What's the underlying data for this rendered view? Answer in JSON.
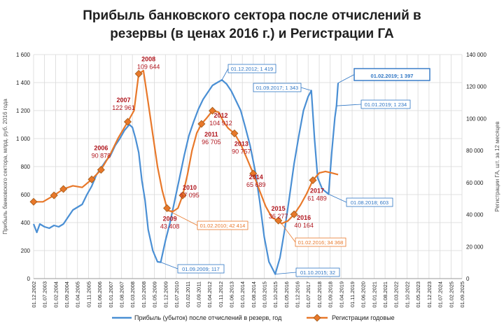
{
  "chart_data": {
    "type": "line",
    "title_line1": "Прибыль банковского сектора после отчислений в",
    "title_line2": "резервы (в ценах 2016 г.) и Регистрации ГА",
    "ylabel_left": "Прибыль банковского сектора, млрд. руб. 2016 года",
    "ylabel_right": "Регистрации ГА, шт. за 12 месяцев",
    "ylim_left": [
      0,
      1600
    ],
    "ylim_right": [
      0,
      140000
    ],
    "yticks_left": [
      "0",
      "200",
      "400",
      "600",
      "800",
      "1 000",
      "1 200",
      "1 400",
      "1 600"
    ],
    "yticks_right": [
      "0",
      "20 000",
      "40 000",
      "60 000",
      "80 000",
      "100 000",
      "120 000",
      "140 000"
    ],
    "x_range": [
      "2002-12-01",
      "2025-09-01"
    ],
    "x_ticks": [
      "01.12.2002",
      "01.07.2003",
      "01.02.2004",
      "01.09.2004",
      "01.04.2005",
      "01.11.2005",
      "01.06.2006",
      "01.01.2007",
      "01.08.2007",
      "01.03.2008",
      "01.10.2008",
      "01.05.2009",
      "01.12.2009",
      "01.07.2010",
      "01.02.2011",
      "01.09.2011",
      "01.04.2012",
      "01.11.2012",
      "01.06.2013",
      "01.01.2014",
      "01.08.2014",
      "01.03.2015",
      "01.10.2015",
      "01.05.2016",
      "01.12.2016",
      "01.07.2017",
      "01.02.2018",
      "01.09.2018",
      "01.04.2019",
      "01.11.2019",
      "01.06.2020",
      "01.01.2021",
      "01.08.2021",
      "01.03.2022",
      "01.10.2022",
      "01.05.2023",
      "01.12.2023",
      "01.07.2024",
      "01.02.2025",
      "01.09.2025"
    ],
    "legend_position": "bottom",
    "grid": true,
    "series": [
      {
        "name": "Прибыль (убыток) после отчислений в резерв, год",
        "axis": "left",
        "color": "#4a8fd4",
        "points": [
          [
            "2002-12-01",
            390
          ],
          [
            "2003-02-01",
            330
          ],
          [
            "2003-04-01",
            390
          ],
          [
            "2003-07-01",
            370
          ],
          [
            "2003-10-01",
            360
          ],
          [
            "2004-01-01",
            380
          ],
          [
            "2004-04-01",
            370
          ],
          [
            "2004-07-01",
            390
          ],
          [
            "2004-10-01",
            440
          ],
          [
            "2005-01-01",
            490
          ],
          [
            "2005-04-01",
            510
          ],
          [
            "2005-07-01",
            530
          ],
          [
            "2005-10-01",
            600
          ],
          [
            "2006-01-01",
            660
          ],
          [
            "2006-04-01",
            740
          ],
          [
            "2006-07-01",
            790
          ],
          [
            "2006-10-01",
            840
          ],
          [
            "2007-01-01",
            880
          ],
          [
            "2007-04-01",
            950
          ],
          [
            "2007-07-01",
            1000
          ],
          [
            "2007-10-01",
            1060
          ],
          [
            "2008-01-01",
            1100
          ],
          [
            "2008-03-01",
            1080
          ],
          [
            "2008-05-01",
            1000
          ],
          [
            "2008-07-01",
            900
          ],
          [
            "2008-09-01",
            700
          ],
          [
            "2008-11-01",
            560
          ],
          [
            "2009-01-01",
            350
          ],
          [
            "2009-04-01",
            200
          ],
          [
            "2009-07-01",
            120
          ],
          [
            "2009-09-01",
            117
          ],
          [
            "2009-12-01",
            270
          ],
          [
            "2010-03-01",
            400
          ],
          [
            "2010-06-01",
            560
          ],
          [
            "2010-09-01",
            720
          ],
          [
            "2010-12-01",
            880
          ],
          [
            "2011-03-01",
            1020
          ],
          [
            "2011-06-01",
            1120
          ],
          [
            "2011-09-01",
            1210
          ],
          [
            "2011-12-01",
            1280
          ],
          [
            "2012-03-01",
            1330
          ],
          [
            "2012-06-01",
            1380
          ],
          [
            "2012-09-01",
            1400
          ],
          [
            "2012-12-01",
            1419
          ],
          [
            "2013-03-01",
            1390
          ],
          [
            "2013-06-01",
            1340
          ],
          [
            "2013-09-01",
            1270
          ],
          [
            "2013-12-01",
            1200
          ],
          [
            "2014-03-01",
            1080
          ],
          [
            "2014-06-01",
            950
          ],
          [
            "2014-09-01",
            780
          ],
          [
            "2014-12-01",
            560
          ],
          [
            "2015-03-01",
            300
          ],
          [
            "2015-06-01",
            120
          ],
          [
            "2015-10-01",
            32
          ],
          [
            "2016-01-01",
            150
          ],
          [
            "2016-04-01",
            350
          ],
          [
            "2016-07-01",
            580
          ],
          [
            "2016-10-01",
            820
          ],
          [
            "2017-01-01",
            1020
          ],
          [
            "2017-04-01",
            1200
          ],
          [
            "2017-07-01",
            1300
          ],
          [
            "2017-09-01",
            1343
          ],
          [
            "2017-11-01",
            1000
          ],
          [
            "2018-01-01",
            720
          ],
          [
            "2018-04-01",
            640
          ],
          [
            "2018-08-01",
            603
          ],
          [
            "2018-10-01",
            900
          ],
          [
            "2018-12-01",
            1150
          ],
          [
            "2019-01-01",
            1234
          ],
          [
            "2019-02-01",
            1397
          ]
        ]
      },
      {
        "name": "Регистрации годовые",
        "axis": "right",
        "color": "#e8782a",
        "marker": "diamond",
        "points": [
          [
            "2002-12-01",
            48000
          ],
          [
            "2003-06-01",
            48000
          ],
          [
            "2004-01-01",
            52000
          ],
          [
            "2004-07-01",
            56000
          ],
          [
            "2005-01-01",
            58000
          ],
          [
            "2005-07-01",
            57000
          ],
          [
            "2006-01-01",
            62000
          ],
          [
            "2006-07-01",
            68000
          ],
          [
            "2007-01-01",
            78000
          ],
          [
            "2007-06-01",
            88000
          ],
          [
            "2007-12-01",
            98000
          ],
          [
            "2008-04-01",
            105000
          ],
          [
            "2008-07-01",
            128000
          ],
          [
            "2008-10-01",
            130000
          ],
          [
            "2009-01-01",
            110000
          ],
          [
            "2009-04-01",
            90000
          ],
          [
            "2009-07-01",
            70000
          ],
          [
            "2009-10-01",
            55000
          ],
          [
            "2010-01-01",
            44000
          ],
          [
            "2010-02-01",
            42414
          ],
          [
            "2010-05-01",
            42000
          ],
          [
            "2010-08-01",
            44000
          ],
          [
            "2010-11-01",
            52000
          ],
          [
            "2011-02-01",
            65000
          ],
          [
            "2011-05-01",
            80000
          ],
          [
            "2011-08-01",
            91000
          ],
          [
            "2011-11-01",
            96705
          ],
          [
            "2012-02-01",
            100000
          ],
          [
            "2012-06-01",
            104912
          ],
          [
            "2012-10-01",
            104000
          ],
          [
            "2013-01-01",
            98000
          ],
          [
            "2013-04-01",
            94000
          ],
          [
            "2013-08-01",
            90757
          ],
          [
            "2013-12-01",
            84000
          ],
          [
            "2014-04-01",
            75000
          ],
          [
            "2014-08-01",
            65689
          ],
          [
            "2014-12-01",
            55000
          ],
          [
            "2015-04-01",
            45000
          ],
          [
            "2015-08-01",
            38000
          ],
          [
            "2015-12-01",
            36277
          ],
          [
            "2016-02-01",
            34368
          ],
          [
            "2016-06-01",
            36000
          ],
          [
            "2016-10-01",
            40164
          ],
          [
            "2017-02-01",
            46000
          ],
          [
            "2017-06-01",
            53000
          ],
          [
            "2017-10-01",
            61489
          ],
          [
            "2018-02-01",
            66000
          ],
          [
            "2018-06-01",
            67000
          ],
          [
            "2018-10-01",
            66000
          ],
          [
            "2019-02-01",
            65000
          ]
        ]
      }
    ],
    "point_labels": [
      {
        "year": "2006",
        "value": "90 878",
        "date": "2006-07-01",
        "y": 68000
      },
      {
        "year": "2007",
        "value": "122 961",
        "date": "2007-12-01",
        "y": 98000
      },
      {
        "year": "2008",
        "value": "109 644",
        "date": "2008-07-01",
        "y": 128000
      },
      {
        "year": "2009",
        "value": "43 408",
        "date": "2010-01-01",
        "y": 44000
      },
      {
        "year": "2010",
        "value": "57 095",
        "date": "2010-11-01",
        "y": 52000
      },
      {
        "year": "2011",
        "value": "96 705",
        "date": "2011-11-01",
        "y": 96705
      },
      {
        "year": "2012",
        "value": "104 912",
        "date": "2012-06-01",
        "y": 104912
      },
      {
        "year": "2013",
        "value": "90 757",
        "date": "2013-08-01",
        "y": 90757
      },
      {
        "year": "2014",
        "value": "65 689",
        "date": "2014-08-01",
        "y": 65689
      },
      {
        "year": "2015",
        "value": "36 277",
        "date": "2015-12-01",
        "y": 36277
      },
      {
        "year": "2016",
        "value": "40 164",
        "date": "2016-10-01",
        "y": 40164
      },
      {
        "year": "2017",
        "value": "61 489",
        "date": "2017-10-01",
        "y": 61489
      }
    ],
    "callouts": [
      {
        "text": "01.12.2012; 1 419",
        "color": "#2e75c4"
      },
      {
        "text": "01.09.2017; 1 343",
        "color": "#2e75c4"
      },
      {
        "text": "01.02.2019; 1 397",
        "color": "#2e75c4"
      },
      {
        "text": "01.01.2019; 1 234",
        "color": "#2e75c4"
      },
      {
        "text": "01.08.2018; 603",
        "color": "#2e75c4"
      },
      {
        "text": "01.09.2009; 117",
        "color": "#2e75c4"
      },
      {
        "text": "01.10.2015; 32",
        "color": "#2e75c4"
      },
      {
        "text": "01.02.2010; 42 414",
        "color": "#e8782a"
      },
      {
        "text": "01.02.2016; 34 368",
        "color": "#e8782a"
      }
    ]
  }
}
